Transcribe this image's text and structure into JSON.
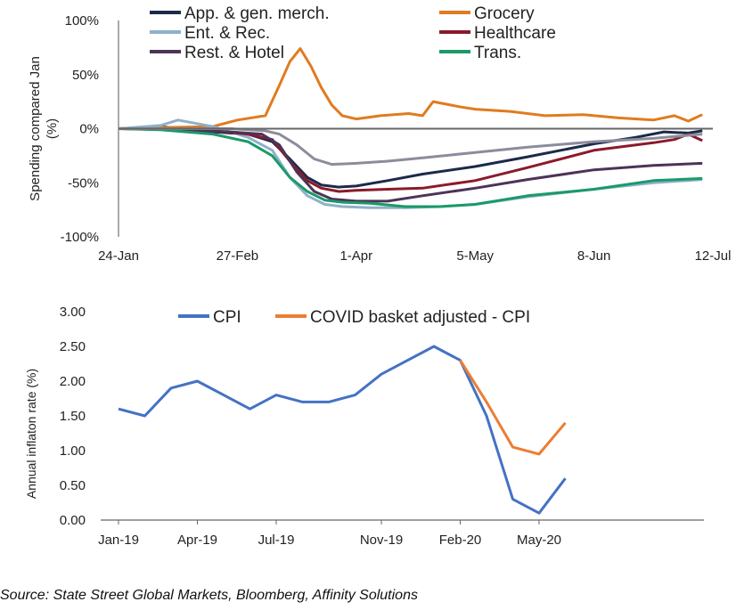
{
  "chart_data": [
    {
      "type": "line",
      "ylabel": "Spending compared Jan (%)",
      "ylim": [
        -100,
        100
      ],
      "y_ticks": [
        "100%",
        "50%",
        "0%",
        "-50%",
        "-100%"
      ],
      "y_tick_values": [
        100,
        50,
        0,
        -50,
        -100
      ],
      "x_ticks": [
        "24-Jan",
        "27-Feb",
        "1-Apr",
        "5-May",
        "8-Jun",
        "12-Jul"
      ],
      "x_tick_values": [
        "2020-01-24",
        "2020-02-27",
        "2020-04-01",
        "2020-05-05",
        "2020-06-08",
        "2020-07-12"
      ],
      "x_range": [
        "2020-01-24",
        "2020-07-12"
      ],
      "legend_position": "top",
      "series": [
        {
          "name": "App. & gen. merch.",
          "color": "#1b2a4a",
          "x": [
            "2020-01-24",
            "2020-02-05",
            "2020-02-20",
            "2020-03-01",
            "2020-03-08",
            "2020-03-13",
            "2020-03-18",
            "2020-03-22",
            "2020-03-27",
            "2020-04-01",
            "2020-04-10",
            "2020-04-20",
            "2020-05-05",
            "2020-05-20",
            "2020-06-08",
            "2020-06-20",
            "2020-06-28",
            "2020-07-05",
            "2020-07-09"
          ],
          "y": [
            0,
            2,
            -3,
            -5,
            -12,
            -28,
            -45,
            -52,
            -54,
            -53,
            -48,
            -42,
            -35,
            -26,
            -14,
            -8,
            -3,
            -4,
            -2
          ]
        },
        {
          "name": "Grocery",
          "color": "#e07b20",
          "x": [
            "2020-01-24",
            "2020-02-05",
            "2020-02-20",
            "2020-02-27",
            "2020-03-06",
            "2020-03-10",
            "2020-03-13",
            "2020-03-16",
            "2020-03-19",
            "2020-03-22",
            "2020-03-25",
            "2020-03-28",
            "2020-04-01",
            "2020-04-08",
            "2020-04-16",
            "2020-04-20",
            "2020-04-23",
            "2020-05-01",
            "2020-05-05",
            "2020-05-15",
            "2020-05-25",
            "2020-06-05",
            "2020-06-15",
            "2020-06-25",
            "2020-07-01",
            "2020-07-05",
            "2020-07-09"
          ],
          "y": [
            0,
            1,
            2,
            8,
            12,
            40,
            62,
            74,
            58,
            38,
            22,
            12,
            9,
            12,
            14,
            12,
            25,
            20,
            18,
            16,
            12,
            13,
            10,
            8,
            12,
            7,
            13
          ]
        },
        {
          "name": "Ent. & Rec.",
          "color": "#8fb0c8",
          "x": [
            "2020-01-24",
            "2020-02-05",
            "2020-02-10",
            "2020-02-20",
            "2020-03-01",
            "2020-03-08",
            "2020-03-13",
            "2020-03-18",
            "2020-03-23",
            "2020-03-28",
            "2020-04-05",
            "2020-04-15",
            "2020-04-25",
            "2020-05-05",
            "2020-05-20",
            "2020-06-08",
            "2020-06-25",
            "2020-07-09"
          ],
          "y": [
            0,
            3,
            8,
            2,
            -8,
            -20,
            -45,
            -62,
            -70,
            -72,
            -73,
            -73,
            -72,
            -70,
            -63,
            -56,
            -50,
            -47
          ]
        },
        {
          "name": "Healthcare",
          "color": "#8b1a2b",
          "x": [
            "2020-01-24",
            "2020-02-05",
            "2020-02-20",
            "2020-03-01",
            "2020-03-08",
            "2020-03-13",
            "2020-03-18",
            "2020-03-22",
            "2020-03-27",
            "2020-04-01",
            "2020-04-10",
            "2020-04-20",
            "2020-05-05",
            "2020-05-20",
            "2020-06-08",
            "2020-06-25",
            "2020-07-01",
            "2020-07-05",
            "2020-07-09"
          ],
          "y": [
            0,
            0,
            -2,
            -5,
            -10,
            -30,
            -48,
            -55,
            -58,
            -57,
            -56,
            -55,
            -48,
            -36,
            -20,
            -13,
            -10,
            -5,
            -11
          ]
        },
        {
          "name": "Rest. & Hotel",
          "color": "#4d3358",
          "x": [
            "2020-01-24",
            "2020-02-10",
            "2020-02-25",
            "2020-03-05",
            "2020-03-10",
            "2020-03-15",
            "2020-03-20",
            "2020-03-25",
            "2020-04-01",
            "2020-04-10",
            "2020-04-20",
            "2020-05-05",
            "2020-05-20",
            "2020-06-08",
            "2020-06-25",
            "2020-07-09"
          ],
          "y": [
            0,
            -1,
            -3,
            -5,
            -15,
            -40,
            -58,
            -65,
            -67,
            -67,
            -62,
            -55,
            -47,
            -38,
            -34,
            -32
          ]
        },
        {
          "name": "Trans.",
          "color": "#1a9a68",
          "x": [
            "2020-01-24",
            "2020-02-05",
            "2020-02-20",
            "2020-03-01",
            "2020-03-08",
            "2020-03-13",
            "2020-03-18",
            "2020-03-23",
            "2020-03-28",
            "2020-04-05",
            "2020-04-15",
            "2020-04-25",
            "2020-05-05",
            "2020-05-20",
            "2020-06-08",
            "2020-06-25",
            "2020-07-09"
          ],
          "y": [
            0,
            -1,
            -5,
            -12,
            -25,
            -45,
            -58,
            -66,
            -68,
            -69,
            -72,
            -72,
            -70,
            -62,
            -56,
            -48,
            -46
          ]
        },
        {
          "name": "",
          "color": "#8c8c9c",
          "x": [
            "2020-01-24",
            "2020-02-10",
            "2020-02-25",
            "2020-03-06",
            "2020-03-10",
            "2020-03-15",
            "2020-03-20",
            "2020-03-25",
            "2020-04-01",
            "2020-04-10",
            "2020-04-20",
            "2020-05-05",
            "2020-05-20",
            "2020-06-08",
            "2020-06-25",
            "2020-07-09"
          ],
          "y": [
            0,
            0,
            0,
            -2,
            -5,
            -15,
            -28,
            -33,
            -32,
            -30,
            -27,
            -22,
            -17,
            -12,
            -9,
            -5
          ]
        }
      ]
    },
    {
      "type": "line",
      "ylabel": "Annual inflaton rate (%)",
      "ylim": [
        0,
        3
      ],
      "y_ticks": [
        "3.00",
        "2.50",
        "2.00",
        "1.50",
        "1.00",
        "0.50",
        "0.00"
      ],
      "y_tick_values": [
        3,
        2.5,
        2,
        1.5,
        1,
        0.5,
        0
      ],
      "x_ticks": [
        "Jan-19",
        "Apr-19",
        "Jul-19",
        "Nov-19",
        "Feb-20",
        "May-20"
      ],
      "x_tick_values": [
        "2019-01",
        "2019-04",
        "2019-07",
        "2019-11",
        "2020-02",
        "2020-05"
      ],
      "categories": [
        "2019-01",
        "2019-02",
        "2019-03",
        "2019-04",
        "2019-05",
        "2019-06",
        "2019-07",
        "2019-08",
        "2019-09",
        "2019-10",
        "2019-11",
        "2019-12",
        "2020-01",
        "2020-02",
        "2020-03",
        "2020-04",
        "2020-05",
        "2020-06"
      ],
      "legend_position": "top",
      "series": [
        {
          "name": "CPI",
          "color": "#4472c4",
          "values": [
            1.6,
            1.5,
            1.9,
            2.0,
            1.8,
            1.6,
            1.8,
            1.7,
            1.7,
            1.8,
            2.1,
            2.3,
            2.5,
            2.3,
            1.5,
            0.3,
            0.1,
            0.6
          ]
        },
        {
          "name": "COVID basket adjusted - CPI",
          "color": "#ed7d31",
          "values": [
            null,
            null,
            null,
            null,
            null,
            null,
            null,
            null,
            null,
            null,
            null,
            null,
            null,
            2.3,
            1.7,
            1.05,
            0.95,
            1.4
          ]
        }
      ]
    }
  ],
  "source": "Source: State Street Global Markets, Bloomberg, Affinity Solutions"
}
